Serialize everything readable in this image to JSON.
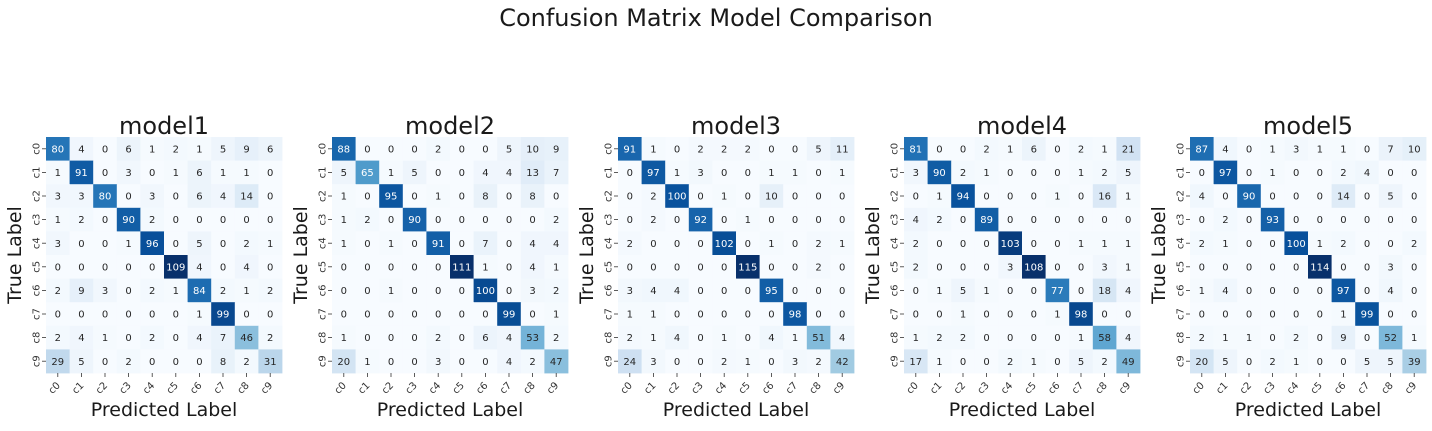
{
  "chart_data": {
    "type": "heatmap",
    "title": "Confusion Matrix Model Comparison",
    "xlabel": "Predicted Label",
    "ylabel": "True Label",
    "labels": [
      "c0",
      "c1",
      "c2",
      "c3",
      "c4",
      "c5",
      "c6",
      "c7",
      "c8",
      "c9"
    ],
    "colormap": "Blues",
    "panels": [
      {
        "title": "model1",
        "matrix": [
          [
            80,
            4,
            0,
            6,
            1,
            2,
            1,
            5,
            9,
            6
          ],
          [
            1,
            91,
            0,
            3,
            0,
            1,
            6,
            1,
            1,
            0
          ],
          [
            3,
            3,
            80,
            0,
            3,
            0,
            6,
            4,
            14,
            0
          ],
          [
            1,
            2,
            0,
            90,
            2,
            0,
            0,
            0,
            0,
            0
          ],
          [
            3,
            0,
            0,
            1,
            96,
            0,
            5,
            0,
            2,
            1
          ],
          [
            0,
            0,
            0,
            0,
            0,
            109,
            4,
            0,
            4,
            0
          ],
          [
            2,
            9,
            3,
            0,
            2,
            1,
            84,
            2,
            1,
            2
          ],
          [
            0,
            0,
            0,
            0,
            0,
            0,
            1,
            99,
            0,
            0
          ],
          [
            2,
            4,
            1,
            0,
            2,
            0,
            4,
            7,
            46,
            2
          ],
          [
            29,
            5,
            0,
            2,
            0,
            0,
            0,
            8,
            2,
            31
          ]
        ]
      },
      {
        "title": "model2",
        "matrix": [
          [
            88,
            0,
            0,
            0,
            2,
            0,
            0,
            5,
            10,
            9
          ],
          [
            5,
            65,
            1,
            5,
            0,
            0,
            4,
            4,
            13,
            7
          ],
          [
            1,
            0,
            95,
            0,
            1,
            0,
            8,
            0,
            8,
            0
          ],
          [
            1,
            2,
            0,
            90,
            0,
            0,
            0,
            0,
            0,
            2
          ],
          [
            1,
            0,
            1,
            0,
            91,
            0,
            7,
            0,
            4,
            4
          ],
          [
            0,
            0,
            0,
            0,
            0,
            111,
            1,
            0,
            4,
            1
          ],
          [
            0,
            0,
            1,
            0,
            0,
            0,
            100,
            0,
            3,
            2
          ],
          [
            0,
            0,
            0,
            0,
            0,
            0,
            0,
            99,
            0,
            1
          ],
          [
            1,
            0,
            0,
            0,
            2,
            0,
            6,
            4,
            53,
            2
          ],
          [
            20,
            1,
            0,
            0,
            3,
            0,
            0,
            4,
            2,
            47
          ]
        ]
      },
      {
        "title": "model3",
        "matrix": [
          [
            91,
            1,
            0,
            2,
            2,
            2,
            0,
            0,
            5,
            11
          ],
          [
            0,
            97,
            1,
            3,
            0,
            0,
            1,
            1,
            0,
            1
          ],
          [
            0,
            2,
            100,
            0,
            1,
            0,
            10,
            0,
            0,
            0
          ],
          [
            0,
            2,
            0,
            92,
            0,
            1,
            0,
            0,
            0,
            0
          ],
          [
            2,
            0,
            0,
            0,
            102,
            0,
            1,
            0,
            2,
            1
          ],
          [
            0,
            0,
            0,
            0,
            0,
            115,
            0,
            0,
            2,
            0
          ],
          [
            3,
            4,
            4,
            0,
            0,
            0,
            95,
            0,
            0,
            0
          ],
          [
            1,
            1,
            0,
            0,
            0,
            0,
            0,
            98,
            0,
            0
          ],
          [
            2,
            1,
            4,
            0,
            1,
            0,
            4,
            1,
            51,
            4
          ],
          [
            24,
            3,
            0,
            0,
            2,
            1,
            0,
            3,
            2,
            42
          ]
        ]
      },
      {
        "title": "model4",
        "matrix": [
          [
            81,
            0,
            0,
            2,
            1,
            6,
            0,
            2,
            1,
            21
          ],
          [
            3,
            90,
            2,
            1,
            0,
            0,
            0,
            1,
            2,
            5
          ],
          [
            0,
            1,
            94,
            0,
            0,
            0,
            1,
            0,
            16,
            1
          ],
          [
            4,
            2,
            0,
            89,
            0,
            0,
            0,
            0,
            0,
            0
          ],
          [
            2,
            0,
            0,
            0,
            103,
            0,
            0,
            1,
            1,
            1
          ],
          [
            2,
            0,
            0,
            0,
            3,
            108,
            0,
            0,
            3,
            1
          ],
          [
            0,
            1,
            5,
            1,
            0,
            0,
            77,
            0,
            18,
            4
          ],
          [
            0,
            0,
            1,
            0,
            0,
            0,
            1,
            98,
            0,
            0
          ],
          [
            1,
            2,
            2,
            0,
            0,
            0,
            0,
            1,
            58,
            4
          ],
          [
            17,
            1,
            0,
            0,
            2,
            1,
            0,
            5,
            2,
            49
          ]
        ]
      },
      {
        "title": "model5",
        "matrix": [
          [
            87,
            4,
            0,
            1,
            3,
            1,
            1,
            0,
            7,
            10
          ],
          [
            0,
            97,
            0,
            1,
            0,
            0,
            2,
            4,
            0,
            0
          ],
          [
            4,
            0,
            90,
            0,
            0,
            0,
            14,
            0,
            5,
            0
          ],
          [
            0,
            2,
            0,
            93,
            0,
            0,
            0,
            0,
            0,
            0
          ],
          [
            2,
            1,
            0,
            0,
            100,
            1,
            2,
            0,
            0,
            2
          ],
          [
            0,
            0,
            0,
            0,
            0,
            114,
            0,
            0,
            3,
            0
          ],
          [
            1,
            4,
            0,
            0,
            0,
            0,
            97,
            0,
            4,
            0
          ],
          [
            0,
            0,
            0,
            0,
            0,
            0,
            1,
            99,
            0,
            0
          ],
          [
            2,
            1,
            1,
            0,
            2,
            0,
            9,
            0,
            52,
            1
          ],
          [
            20,
            5,
            0,
            2,
            1,
            0,
            0,
            5,
            5,
            39
          ]
        ]
      }
    ]
  }
}
